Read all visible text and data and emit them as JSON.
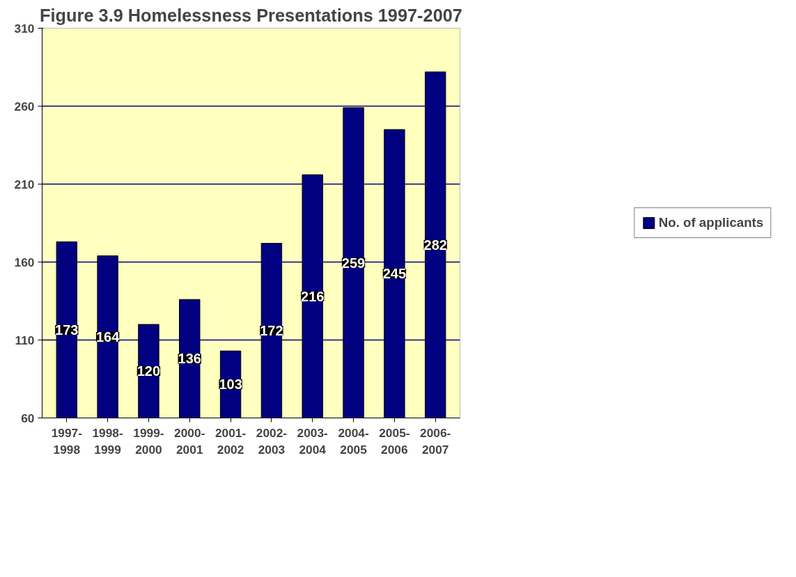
{
  "chart_data": {
    "type": "bar",
    "title": "Figure 3.9 Homelessness Presentations 1997-2007",
    "categories": [
      "1997-\n1998",
      "1998-\n1999",
      "1999-\n2000",
      "2000-\n2001",
      "2001-\n2002",
      "2002-\n2003",
      "2003-\n2004",
      "2004-\n2005",
      "2005-\n2006",
      "2006-\n2007"
    ],
    "series": [
      {
        "name": "No. of applicants",
        "color": "#000080",
        "values": [
          173,
          164,
          120,
          136,
          103,
          172,
          216,
          259,
          245,
          282
        ]
      }
    ],
    "ylim": [
      60,
      310
    ],
    "yticks": [
      60,
      110,
      160,
      210,
      260,
      310
    ],
    "grid": "y",
    "legend": "right",
    "data_labels": true
  }
}
